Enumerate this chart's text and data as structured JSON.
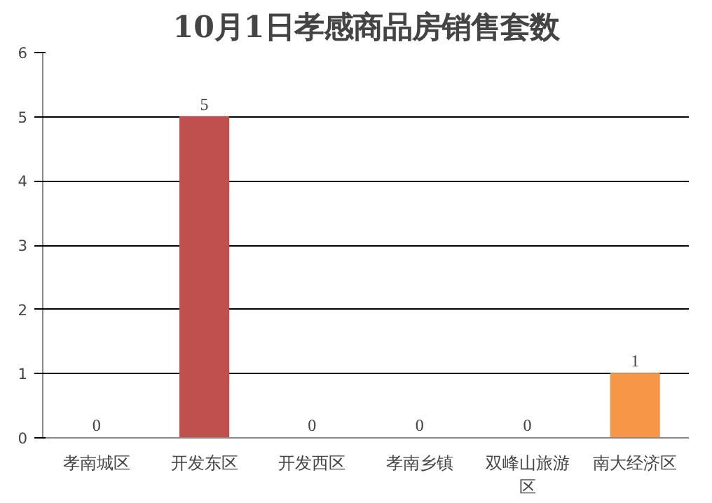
{
  "chart_data": {
    "type": "bar",
    "title": "10月1日孝感商品房销售套数",
    "categories": [
      "孝南城区",
      "开发东区",
      "开发西区",
      "孝南乡镇",
      "双峰山旅游区",
      "南大经济区"
    ],
    "values": [
      0,
      5,
      0,
      0,
      0,
      1
    ],
    "colors": [
      "#c0504d",
      "#c0504d",
      "#c0504d",
      "#c0504d",
      "#c0504d",
      "#f79646"
    ],
    "ylim": [
      0,
      6
    ],
    "yticks": [
      0,
      1,
      2,
      3,
      4,
      5,
      6
    ],
    "grid": "y",
    "data_labels": true
  }
}
